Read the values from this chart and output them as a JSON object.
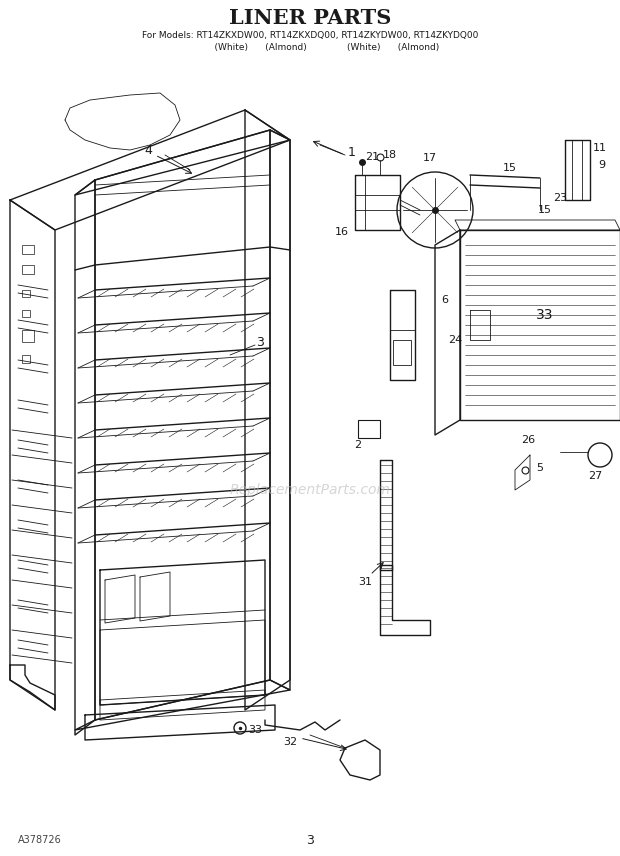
{
  "title": "LINER PARTS",
  "subtitle_line1": "For Models: RT14ZKXDW00, RT14ZKXDQ00, RT14ZKYDW00, RT14ZKYDQ00",
  "subtitle_line2": "            (White)      (Almond)              (White)      (Almond)",
  "footer_left": "A378726",
  "footer_center": "3",
  "bg_color": "#ffffff",
  "line_color": "#1a1a1a",
  "title_fontsize": 15,
  "subtitle_fontsize": 6.5,
  "watermark": "ReplacementParts.com",
  "watermark_color": "#bbbbbb"
}
